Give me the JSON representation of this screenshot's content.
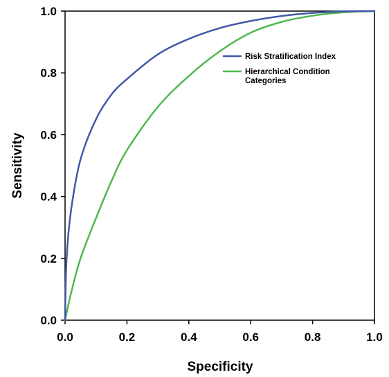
{
  "chart_data": {
    "type": "line",
    "title": "",
    "xlabel": "Specificity",
    "ylabel": "Sensitivity",
    "xlim": [
      0,
      1
    ],
    "ylim": [
      0,
      1
    ],
    "x_ticks": [
      "0.0",
      "0.2",
      "0.4",
      "0.6",
      "0.8",
      "1.0"
    ],
    "y_ticks": [
      "0.0",
      "0.2",
      "0.4",
      "0.6",
      "0.8",
      "1.0"
    ],
    "grid": false,
    "legend_position": "top-right",
    "series": [
      {
        "name": "Risk Stratification Index",
        "color": "#4457a8",
        "x": [
          0,
          0.005,
          0.02,
          0.05,
          0.1,
          0.15,
          0.2,
          0.3,
          0.4,
          0.5,
          0.6,
          0.7,
          0.8,
          0.9,
          1.0
        ],
        "y": [
          0,
          0.2,
          0.36,
          0.52,
          0.65,
          0.73,
          0.78,
          0.86,
          0.91,
          0.945,
          0.968,
          0.984,
          0.994,
          0.999,
          1.0
        ]
      },
      {
        "name": "Hierarchical Condition Categories",
        "name_lines": [
          "Hierarchical Condition",
          "Categories"
        ],
        "color": "#4fb84f",
        "x": [
          0,
          0.02,
          0.05,
          0.1,
          0.15,
          0.2,
          0.3,
          0.4,
          0.5,
          0.6,
          0.7,
          0.8,
          0.9,
          1.0
        ],
        "y": [
          0,
          0.09,
          0.2,
          0.33,
          0.45,
          0.55,
          0.69,
          0.79,
          0.87,
          0.93,
          0.965,
          0.985,
          0.996,
          1.0
        ]
      }
    ]
  }
}
